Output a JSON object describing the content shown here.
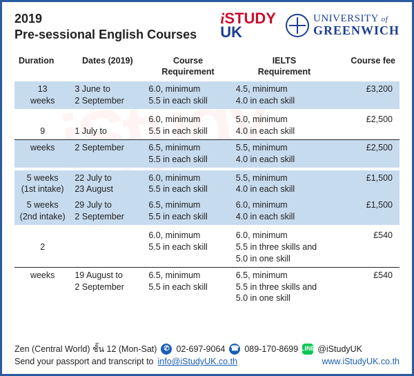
{
  "header": {
    "year": "2019",
    "subtitle": "Pre-sessional English Courses",
    "istudy": {
      "i": "i",
      "study": "STUDY",
      "uk": "UK"
    },
    "greenwich": {
      "line1_a": "UNIVERSITY",
      "line1_of": "of",
      "line2": "GREENWICH"
    }
  },
  "columns": {
    "duration": "Duration",
    "dates": "Dates (2019)",
    "course_req_a": "Course",
    "course_req_b": "Requirement",
    "ielts_a": "IELTS",
    "ielts_b": "Requirement",
    "fee": "Course fee"
  },
  "rows": [
    {
      "band": true,
      "dur_a": "13",
      "dur_b": "weeks",
      "date_a": "3 June to",
      "date_b": "2 September",
      "req_a": "6.0, minimum",
      "req_b": "5.5 in each skill",
      "ielts_a": "4.5, minimum",
      "ielts_b": "4.0 in each skill",
      "ielts_c": "",
      "fee": "£3,200",
      "rule": false
    },
    {
      "band": false,
      "dur_a": "",
      "dur_b": "",
      "date_a": "",
      "date_b": "",
      "req_a": "",
      "req_b": "",
      "ielts_a": "",
      "ielts_b": "",
      "ielts_c": "",
      "fee": "",
      "rule": false,
      "spacer": true
    },
    {
      "band": false,
      "dur_a": "",
      "dur_b": "9",
      "date_a": "",
      "date_b": "1 July to",
      "req_a": "6.0, minimum",
      "req_b": "5.5 in each skill",
      "ielts_a": "5.0, minimum",
      "ielts_b": "4.0 in each skill",
      "ielts_c": "",
      "fee": "£2,500",
      "rule": true
    },
    {
      "band": true,
      "dur_a": "weeks",
      "dur_b": "",
      "date_a": "2 September",
      "date_b": "",
      "req_a": "6.5, minimum",
      "req_b": "5.5 in each skill",
      "ielts_a": "5.5, minimum",
      "ielts_b": "4.0 in each skill",
      "ielts_c": "",
      "fee": "£2,500",
      "rule": false
    },
    {
      "band": false,
      "dur_a": "",
      "dur_b": "",
      "date_a": "",
      "date_b": "",
      "req_a": "",
      "req_b": "",
      "ielts_a": "",
      "ielts_b": "",
      "ielts_c": "",
      "fee": "",
      "rule": false,
      "spacer": true
    },
    {
      "band": true,
      "dur_a": "5 weeks",
      "dur_b": "(1st intake)",
      "date_a": "22 July to",
      "date_b": "23 August",
      "req_a": "6.0, minimum",
      "req_b": "5.5 in each skill",
      "ielts_a": "5.5, minimum",
      "ielts_b": "4.0 in each skill",
      "ielts_c": "",
      "fee": "£1,500",
      "rule": false
    },
    {
      "band": true,
      "dur_a": "5 weeks",
      "dur_b": "(2nd intake)",
      "date_a": "29 July to",
      "date_b": "2 September",
      "req_a": "6.5, minimum",
      "req_b": "5.5 in each skill",
      "ielts_a": "6.0, minimum",
      "ielts_b": "4.0 in each skill",
      "ielts_c": "",
      "fee": "£1,500",
      "rule": false
    },
    {
      "band": false,
      "dur_a": "",
      "dur_b": "",
      "date_a": "",
      "date_b": "",
      "req_a": "",
      "req_b": "",
      "ielts_a": "",
      "ielts_b": "",
      "ielts_c": "",
      "fee": "",
      "rule": false,
      "spacer": true
    },
    {
      "band": false,
      "dur_a": "",
      "dur_b": "2",
      "date_a": "",
      "date_b": "",
      "req_a": "6.0, minimum",
      "req_b": "5.5 in each skill",
      "ielts_a": "6.0, minimum",
      "ielts_b": "5.5 in three skills and",
      "ielts_c": "5.0 in one skill",
      "fee": "£540",
      "rule": true
    },
    {
      "band": false,
      "dur_a": "weeks",
      "dur_b": "",
      "date_a": "19 August to",
      "date_b": "2 September",
      "req_a": "6.5, minimum",
      "req_b": "5.5 in each skill",
      "ielts_a": "6.5, minimum",
      "ielts_b": "5.5 in three skills and",
      "ielts_c": "5.0 in one skill",
      "fee": "£540",
      "rule": false
    }
  ],
  "footer": {
    "loc": "Zen (Central World) ชั้น 12 (Mon-Sat)",
    "phone": "02-697-9064",
    "mobile": "089-170-8699",
    "line": "@iStudyUK",
    "send": "Send your passport and transcript to ",
    "email": "info@iStudyUK.co.th",
    "web": "www.iStudyUK.co.th"
  },
  "colors": {
    "border": "#2a5b9e",
    "band": "#c7dbef",
    "link": "#1b5fb3",
    "text": "#222222"
  }
}
